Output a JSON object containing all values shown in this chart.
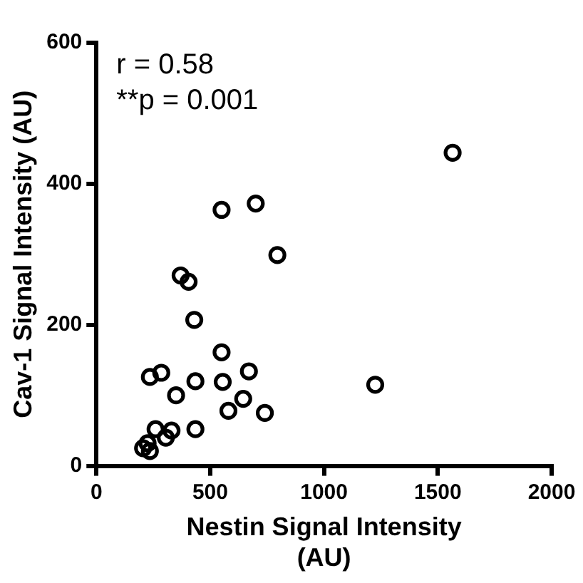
{
  "chart_data": {
    "type": "scatter",
    "xlabel": "Nestin Signal Intensity (AU)",
    "ylabel": "Cav-1 Signal Intensity (AU)",
    "annotations": [
      "r = 0.58",
      "**p = 0.001"
    ],
    "series": [
      {
        "color": "#000000",
        "x": [
          1565,
          700,
          550,
          795,
          370,
          405,
          430,
          550,
          235,
          285,
          350,
          435,
          555,
          670,
          645,
          580,
          740,
          1225,
          435,
          260,
          330,
          305,
          225,
          205,
          235
        ],
        "values": [
          444,
          372,
          363,
          299,
          270,
          261,
          207,
          161,
          126,
          132,
          100,
          120,
          119,
          134,
          95,
          78,
          75,
          115,
          52,
          52,
          50,
          40,
          32,
          25,
          21
        ]
      }
    ],
    "xlim": [
      0,
      2000
    ],
    "xticks": [
      0,
      500,
      1000,
      1500,
      2000
    ],
    "ylim": [
      0,
      600
    ],
    "yticks": [
      0,
      200,
      400,
      600
    ],
    "grid": false,
    "legend": false,
    "marker": "circle"
  }
}
